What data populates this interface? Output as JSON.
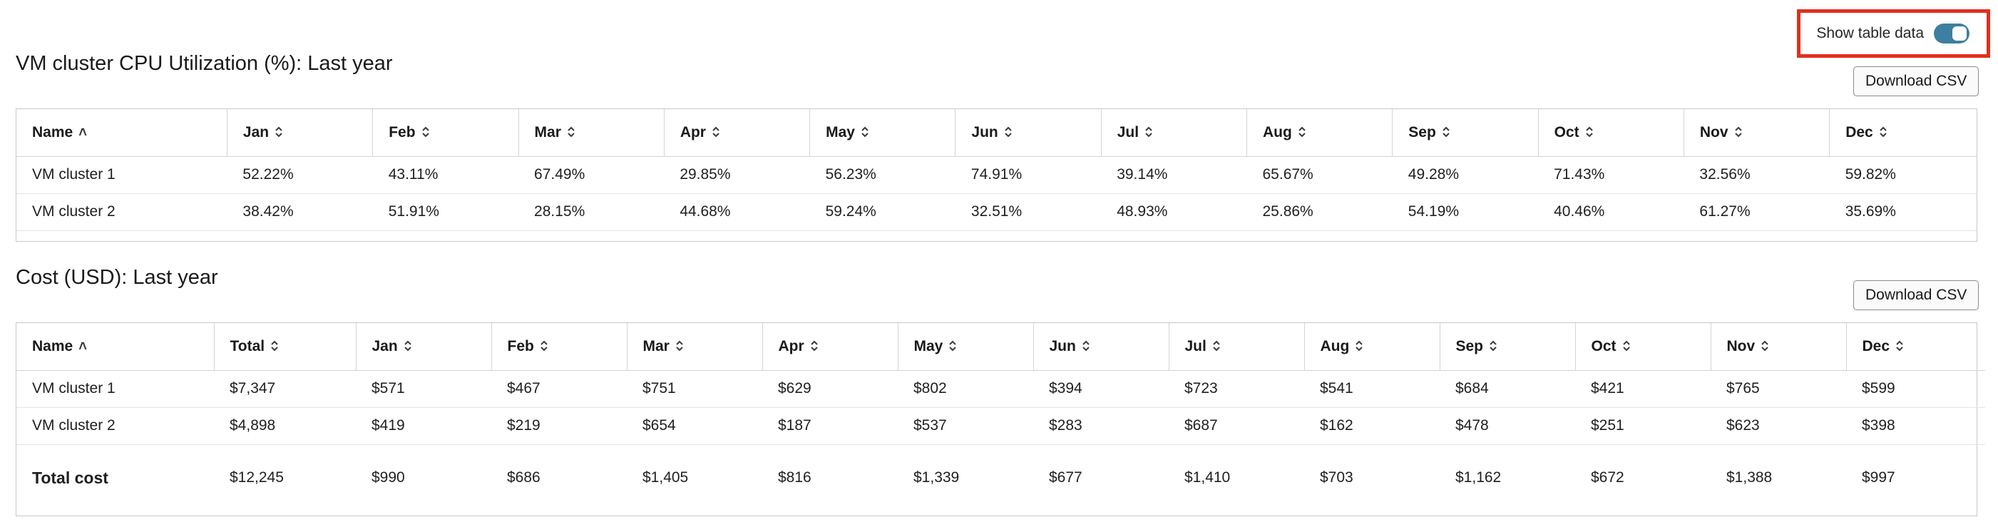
{
  "toggle": {
    "label": "Show table data",
    "on": true,
    "accent": "#3d7fa0",
    "highlight": "#e0301e"
  },
  "cpu": {
    "title": "VM cluster CPU Utilization (%): Last year",
    "download_label": "Download CSV",
    "headers": [
      "Name",
      "Jan",
      "Feb",
      "Mar",
      "Apr",
      "May",
      "Jun",
      "Jul",
      "Aug",
      "Sep",
      "Oct",
      "Nov",
      "Dec"
    ],
    "rows": [
      [
        "VM cluster 1",
        "52.22%",
        "43.11%",
        "67.49%",
        "29.85%",
        "56.23%",
        "74.91%",
        "39.14%",
        "65.67%",
        "49.28%",
        "71.43%",
        "32.56%",
        "59.82%"
      ],
      [
        "VM cluster 2",
        "38.42%",
        "51.91%",
        "28.15%",
        "44.68%",
        "59.24%",
        "32.51%",
        "48.93%",
        "25.86%",
        "54.19%",
        "40.46%",
        "61.27%",
        "35.69%"
      ]
    ]
  },
  "cost": {
    "title": "Cost (USD): Last year",
    "download_label": "Download CSV",
    "headers": [
      "Name",
      "Total",
      "Jan",
      "Feb",
      "Mar",
      "Apr",
      "May",
      "Jun",
      "Jul",
      "Aug",
      "Sep",
      "Oct",
      "Nov",
      "Dec"
    ],
    "rows": [
      [
        "VM cluster 1",
        "$7,347",
        "$571",
        "$467",
        "$751",
        "$629",
        "$802",
        "$394",
        "$723",
        "$541",
        "$684",
        "$421",
        "$765",
        "$599"
      ],
      [
        "VM cluster 2",
        "$4,898",
        "$419",
        "$219",
        "$654",
        "$187",
        "$537",
        "$283",
        "$687",
        "$162",
        "$478",
        "$251",
        "$623",
        "$398"
      ]
    ],
    "total_row": [
      "Total cost",
      "$12,245",
      "$990",
      "$686",
      "$1,405",
      "$816",
      "$1,339",
      "$677",
      "$1,410",
      "$703",
      "$1,162",
      "$672",
      "$1,388",
      "$997"
    ]
  }
}
